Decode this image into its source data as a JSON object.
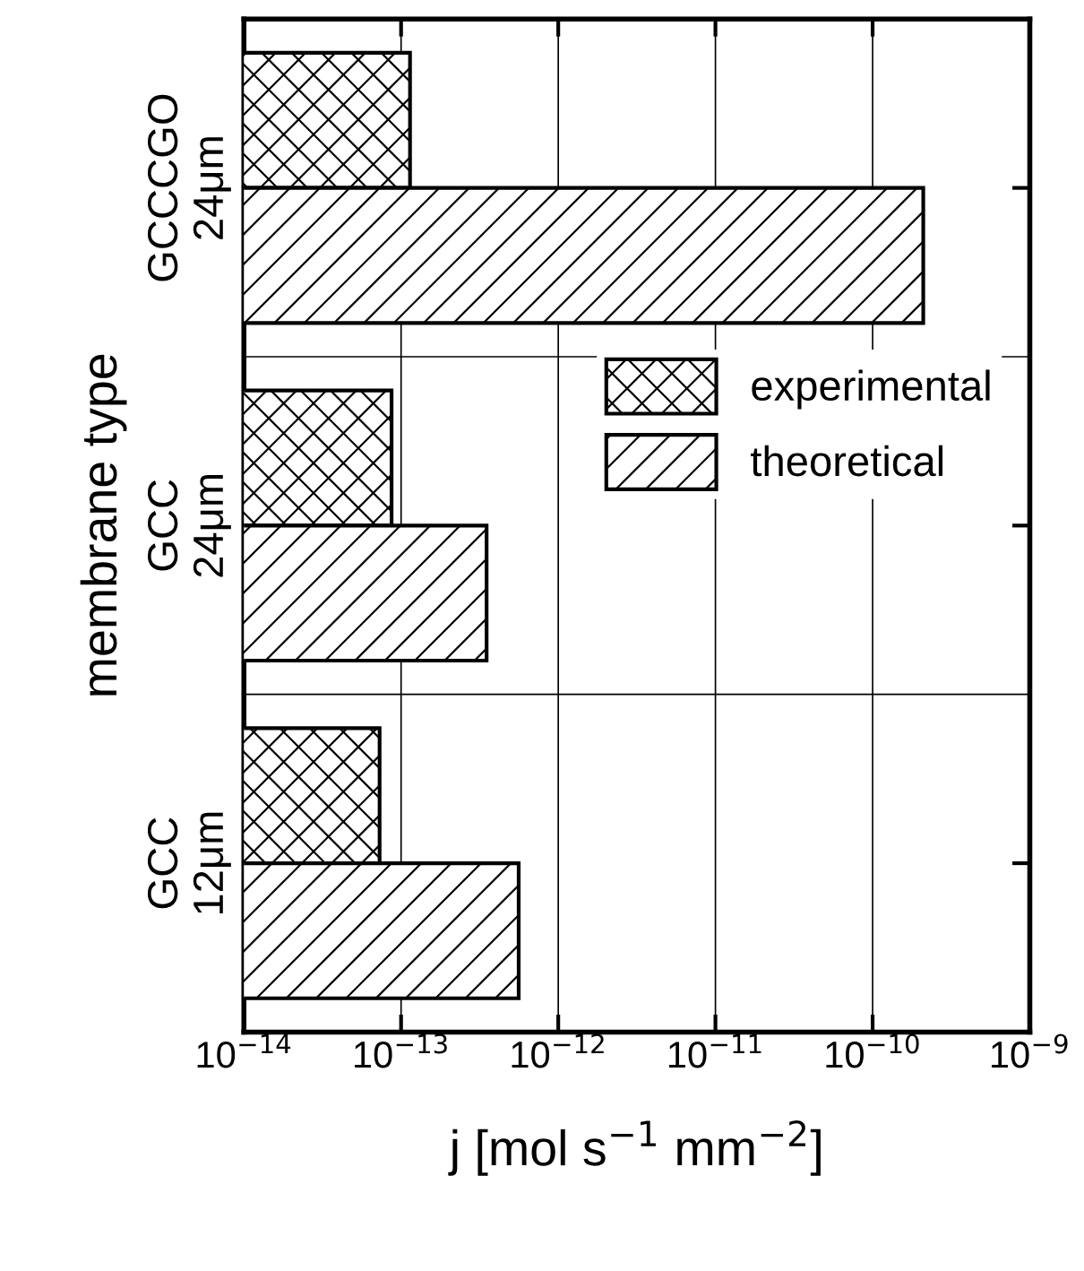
{
  "chart_data": {
    "type": "bar",
    "orientation": "horizontal",
    "xlabel": "j [mol s$^{−1}$ mm$^{−2}$]",
    "ylabel": "membrane type",
    "categories": [
      "GCCCGO\n24μm",
      "GCC\n24μm",
      "GCC\n12μm"
    ],
    "series": [
      {
        "name": "experimental",
        "color": "#000000",
        "values": [
          1.14e-13,
          8.7e-14,
          7.3e-14
        ]
      },
      {
        "name": "theoretical",
        "color": "#000000",
        "values": [
          2.1e-10,
          3.5e-13,
          5.6e-13
        ]
      }
    ],
    "log": "x",
    "xlim": [
      1e-14,
      1e-09
    ],
    "xticks": [
      {
        "value": 1e-14,
        "label": "10$^{−14}$"
      },
      {
        "value": 1e-13,
        "label": "10$^{−13}$"
      },
      {
        "value": 1e-12,
        "label": "10$^{−12}$"
      },
      {
        "value": 1e-11,
        "label": "10$^{−11}$"
      },
      {
        "value": 1e-10,
        "label": "10$^{−10}$"
      },
      {
        "value": 1e-09,
        "label": "10$^{−9}$"
      }
    ],
    "grid": true,
    "legend": "center right"
  }
}
